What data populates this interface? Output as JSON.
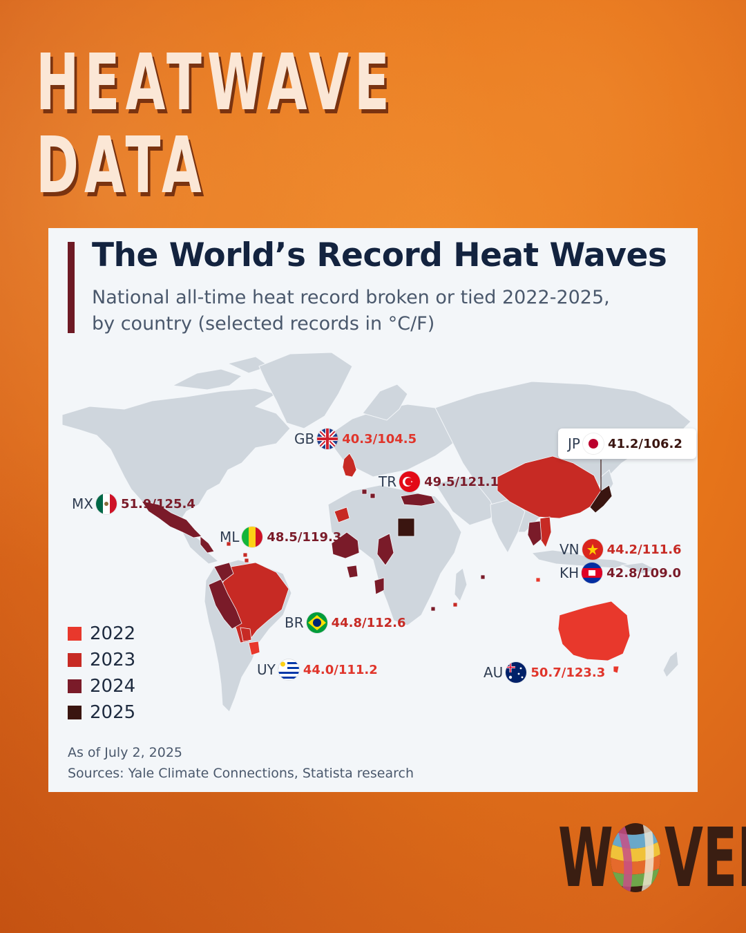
{
  "headline": {
    "line1": "HEATWAVE",
    "line2": "DATA"
  },
  "card": {
    "title": "The World’s Record Heat Waves",
    "subtitle_line1": "National all-time heat record broken or tied 2022-2025,",
    "subtitle_line2": "by country (selected records in °C/F)",
    "footnote_date": "As of July 2, 2025",
    "footnote_sources": "Sources: Yale Climate Connections, Statista research"
  },
  "legend": [
    {
      "label": "2022",
      "color": "#e8382c"
    },
    {
      "label": "2023",
      "color": "#c72a24"
    },
    {
      "label": "2024",
      "color": "#7a1b29"
    },
    {
      "label": "2025",
      "color": "#3a1510"
    }
  ],
  "colors": {
    "land": "#cfd6dd",
    "value_red": "#e0352b",
    "value_dark": "#7a1b29",
    "title": "#13233f"
  },
  "records": [
    {
      "code": "GB",
      "value": "40.3/104.5",
      "year": "2022",
      "flag": "uk-flag-icon"
    },
    {
      "code": "TR",
      "value": "49.5/121.1",
      "year": "2023",
      "flag": "turkey-flag-icon"
    },
    {
      "code": "MX",
      "value": "51.9/125.4",
      "year": "2024",
      "flag": "mexico-flag-icon"
    },
    {
      "code": "ML",
      "value": "48.5/119.3",
      "year": "2024",
      "flag": "mali-flag-icon"
    },
    {
      "code": "JP",
      "value": "41.2/106.2",
      "year": "2025",
      "flag": "japan-flag-icon"
    },
    {
      "code": "VN",
      "value": "44.2/111.6",
      "year": "2023",
      "flag": "vietnam-flag-icon"
    },
    {
      "code": "KH",
      "value": "42.8/109.0",
      "year": "2024",
      "flag": "cambodia-flag-icon"
    },
    {
      "code": "BR",
      "value": "44.8/112.6",
      "year": "2023",
      "flag": "brazil-flag-icon"
    },
    {
      "code": "UY",
      "value": "44.0/111.2",
      "year": "2022",
      "flag": "uruguay-flag-icon"
    },
    {
      "code": "AU",
      "value": "50.7/123.3",
      "year": "2022",
      "flag": "australia-flag-icon"
    }
  ],
  "logo": {
    "text_left": "W",
    "text_right": "VEN"
  }
}
